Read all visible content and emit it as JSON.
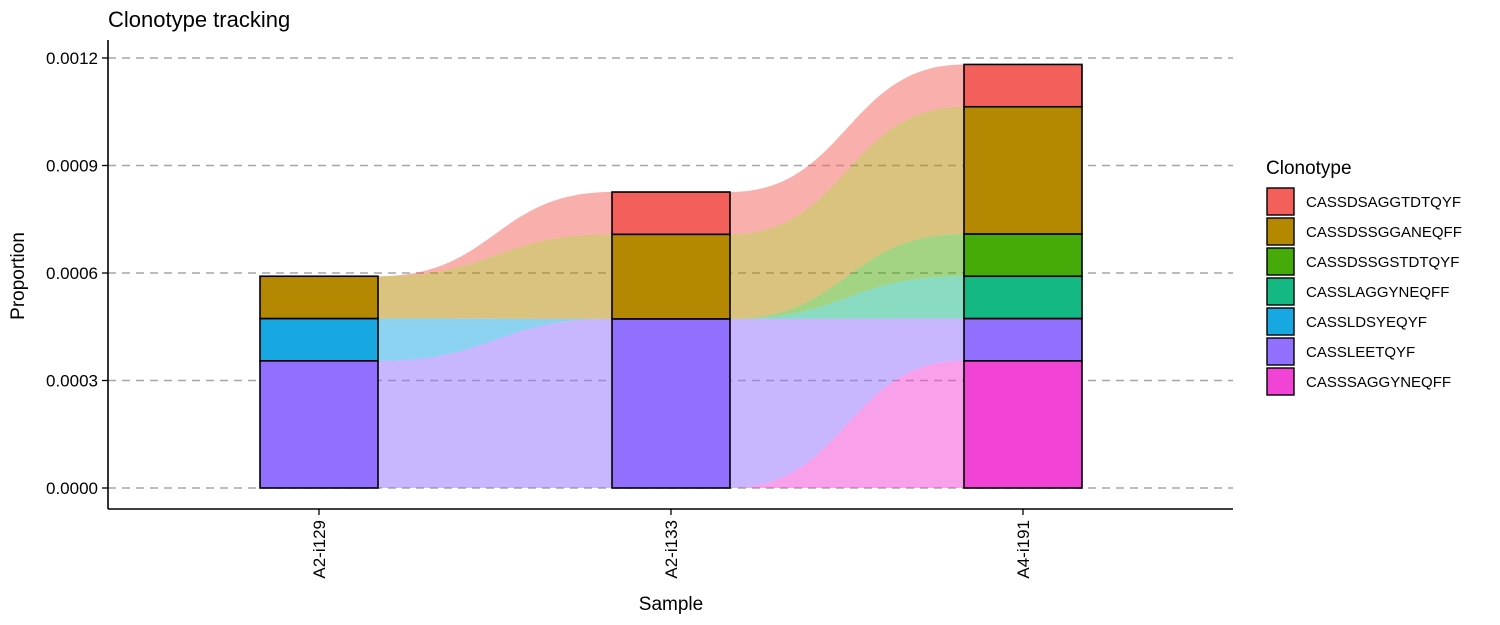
{
  "chart_data": {
    "type": "bar",
    "subtype": "stacked-bar-with-alluvial-flows",
    "title": "Clonotype tracking",
    "xlabel": "Sample",
    "ylabel": "Proportion",
    "ylim": [
      0,
      0.00125
    ],
    "yticks": [
      "0.0000",
      "0.0003",
      "0.0006",
      "0.0009",
      "0.0012"
    ],
    "ytick_values": [
      0,
      0.0003,
      0.0006,
      0.0009,
      0.0012
    ],
    "grid": "horizontal dashed at y ticks",
    "categories": [
      "A2-i129",
      "A2-i133",
      "A4-i191"
    ],
    "legend": {
      "title": "Clonotype",
      "position": "right"
    },
    "series": [
      {
        "name": "CASSSAGGYNEQFF",
        "color": "#F143D6",
        "values": [
          0,
          0,
          0.000355
        ]
      },
      {
        "name": "CASSLEETQYF",
        "color": "#9270FF",
        "values": [
          0.000355,
          0.000472,
          0.000118
        ]
      },
      {
        "name": "CASSLDSYEQYF",
        "color": "#17A8E2",
        "values": [
          0.000118,
          0,
          0
        ]
      },
      {
        "name": "CASSLAGGYNEQFF",
        "color": "#14B883",
        "values": [
          0,
          0,
          0.000118
        ]
      },
      {
        "name": "CASSDSSGSTDTQYF",
        "color": "#46AA08",
        "values": [
          0,
          0,
          0.000118
        ]
      },
      {
        "name": "CASSDSSGGANEQFF",
        "color": "#B48800",
        "values": [
          0.000118,
          0.000236,
          0.000355
        ]
      },
      {
        "name": "CASSDSAGGTDTQYF",
        "color": "#F35F5A",
        "values": [
          0,
          0.000118,
          0.000118
        ]
      }
    ]
  }
}
